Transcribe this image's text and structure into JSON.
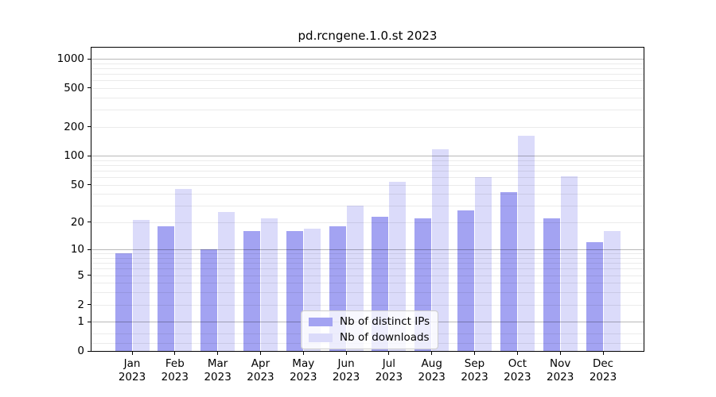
{
  "chart_data": {
    "type": "bar",
    "title": "pd.rcngene.1.0.st 2023",
    "categories": [
      "Jan",
      "Feb",
      "Mar",
      "Apr",
      "May",
      "Jun",
      "Jul",
      "Aug",
      "Sep",
      "Oct",
      "Nov",
      "Dec"
    ],
    "category_year": "2023",
    "series": [
      {
        "name": "Nb of distinct IPs",
        "color": "#a3a3f2",
        "values": [
          9,
          18,
          10,
          16,
          16,
          18,
          23,
          22,
          27,
          42,
          22,
          12
        ]
      },
      {
        "name": "Nb of downloads",
        "color": "#dbdbfa",
        "values": [
          21,
          45,
          26,
          22,
          17,
          30,
          54,
          117,
          60,
          160,
          61,
          16
        ]
      }
    ],
    "y_axis": {
      "scale": "log1p",
      "ticks": [
        0,
        1,
        2,
        5,
        10,
        20,
        50,
        100,
        200,
        500,
        1000
      ],
      "major_gridlines": [
        1,
        10,
        100,
        1000
      ],
      "minor_gridlines": [
        0.2,
        0.5,
        2,
        3,
        4,
        5,
        6,
        7,
        8,
        9,
        20,
        30,
        40,
        50,
        60,
        70,
        80,
        90,
        200,
        300,
        400,
        500,
        600,
        700,
        800,
        900
      ],
      "top_value": 1300
    },
    "xlabel": "",
    "ylabel": "",
    "grid": true,
    "legend": {
      "position": "lower center"
    }
  },
  "colors": {
    "background": "#ffffff",
    "spine": "#000000",
    "text": "#000000",
    "major_grid": "rgba(0,0,0,0.28)",
    "minor_grid": "rgba(0,0,0,0.08)"
  }
}
